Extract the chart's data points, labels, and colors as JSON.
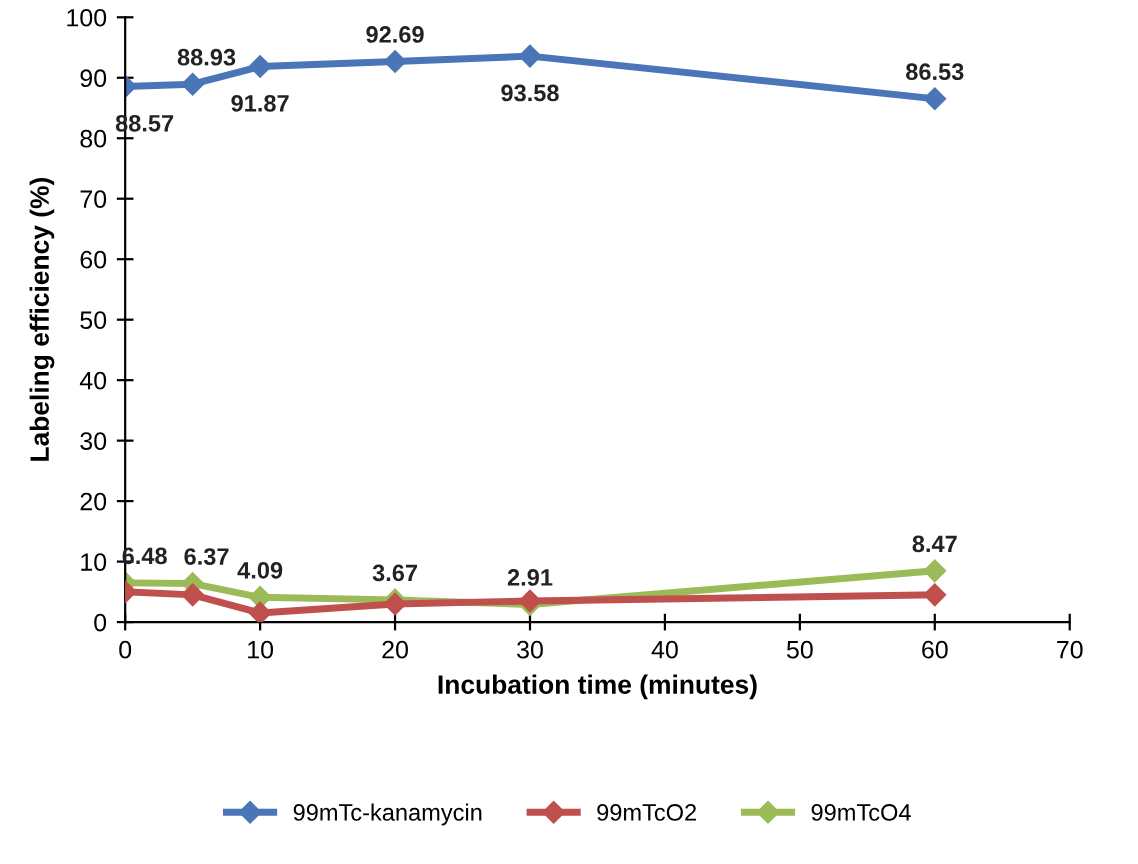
{
  "chart_data": {
    "type": "line",
    "xlabel": "Incubation time (minutes)",
    "ylabel": "Labeling efficiency (%)",
    "x": [
      0,
      5,
      10,
      20,
      30,
      60
    ],
    "series": [
      {
        "name": "99mTc-kanamycin",
        "color": "#4a76b8",
        "values": [
          88.57,
          88.93,
          91.87,
          92.69,
          93.58,
          86.53
        ],
        "value_labels": [
          "88.57",
          "88.93",
          "91.87",
          "92.69",
          "93.58",
          "86.53"
        ]
      },
      {
        "name": "99mTcO2",
        "color": "#c0504d",
        "values": [
          5,
          4.5,
          1.5,
          3,
          3.5,
          4.5
        ]
      },
      {
        "name": "99mTcO4",
        "color": "#9bbb59",
        "values": [
          6.48,
          6.37,
          4.09,
          3.67,
          2.91,
          8.47
        ],
        "value_labels": [
          "6.48",
          "6.37",
          "4.09",
          "3.67",
          "2.91",
          "8.47"
        ]
      }
    ],
    "xlim": [
      0,
      70
    ],
    "xticks": [
      0,
      10,
      20,
      30,
      40,
      50,
      60,
      70
    ],
    "ylim": [
      0,
      100
    ],
    "yticks": [
      0,
      10,
      20,
      30,
      40,
      50,
      60,
      70,
      80,
      90,
      100
    ],
    "grid": false,
    "legend": "bottom",
    "marker": "diamond",
    "line_style": "solid"
  }
}
